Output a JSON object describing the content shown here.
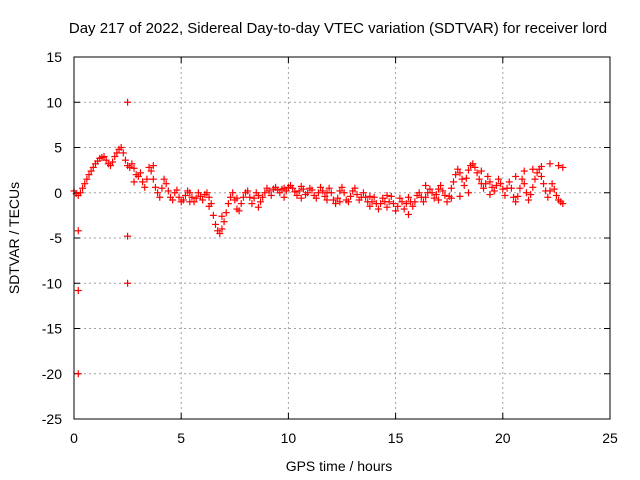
{
  "chart_data": {
    "type": "scatter",
    "title": "Day 217 of 2022, Sidereal Day-to-day VTEC variation (SDTVAR) for receiver lord",
    "xlabel": "GPS time / hours",
    "ylabel": "SDTVAR / TECUs",
    "xlim": [
      0,
      25
    ],
    "ylim": [
      -25,
      15
    ],
    "xticks": [
      0,
      5,
      10,
      15,
      20,
      25
    ],
    "yticks": [
      15,
      10,
      5,
      0,
      -5,
      -10,
      -15,
      -20,
      -25
    ],
    "grid": true,
    "marker": "+",
    "series_color": "#ff0000",
    "series": [
      {
        "name": "SDTVAR",
        "points": [
          [
            0.0,
            0.2
          ],
          [
            0.1,
            -0.1
          ],
          [
            0.2,
            -0.3
          ],
          [
            0.3,
            0.0
          ],
          [
            0.4,
            0.5
          ],
          [
            0.5,
            1.0
          ],
          [
            0.6,
            1.5
          ],
          [
            0.7,
            2.0
          ],
          [
            0.8,
            2.4
          ],
          [
            0.9,
            2.8
          ],
          [
            1.0,
            3.2
          ],
          [
            1.1,
            3.5
          ],
          [
            1.2,
            3.8
          ],
          [
            1.3,
            3.9
          ],
          [
            1.4,
            4.0
          ],
          [
            1.5,
            3.6
          ],
          [
            1.6,
            3.2
          ],
          [
            1.7,
            3.0
          ],
          [
            1.8,
            3.4
          ],
          [
            1.9,
            4.0
          ],
          [
            2.0,
            4.4
          ],
          [
            2.1,
            4.8
          ],
          [
            2.2,
            5.0
          ],
          [
            2.3,
            4.4
          ],
          [
            2.4,
            3.6
          ],
          [
            2.5,
            3.0
          ],
          [
            2.6,
            2.8
          ],
          [
            2.7,
            3.2
          ],
          [
            2.8,
            2.7
          ],
          [
            2.9,
            2.0
          ],
          [
            3.0,
            1.8
          ],
          [
            3.1,
            2.2
          ],
          [
            3.2,
            1.2
          ],
          [
            3.3,
            0.6
          ],
          [
            3.4,
            1.5
          ],
          [
            3.5,
            2.8
          ],
          [
            3.6,
            2.4
          ],
          [
            3.7,
            1.5
          ],
          [
            3.8,
            0.6
          ],
          [
            3.9,
            0.0
          ],
          [
            4.0,
            -0.5
          ],
          [
            4.1,
            0.5
          ],
          [
            4.2,
            1.5
          ],
          [
            4.3,
            1.0
          ],
          [
            4.4,
            0.2
          ],
          [
            4.5,
            -0.5
          ],
          [
            4.6,
            -0.8
          ],
          [
            4.7,
            0.0
          ],
          [
            4.8,
            0.3
          ],
          [
            4.9,
            -0.5
          ],
          [
            5.0,
            -1.0
          ],
          [
            5.1,
            -0.8
          ],
          [
            5.2,
            -0.3
          ],
          [
            5.3,
            0.2
          ],
          [
            5.4,
            0.0
          ],
          [
            5.5,
            -0.5
          ],
          [
            5.6,
            -1.0
          ],
          [
            5.7,
            -0.6
          ],
          [
            5.8,
            0.0
          ],
          [
            5.9,
            -0.4
          ],
          [
            6.0,
            -0.8
          ],
          [
            6.1,
            -0.2
          ],
          [
            6.2,
            0.0
          ],
          [
            6.3,
            -0.5
          ],
          [
            6.4,
            -1.2
          ],
          [
            6.5,
            -2.5
          ],
          [
            6.6,
            -3.5
          ],
          [
            6.7,
            -4.2
          ],
          [
            6.8,
            -4.5
          ],
          [
            6.9,
            -4.0
          ],
          [
            7.0,
            -3.2
          ],
          [
            7.1,
            -2.2
          ],
          [
            7.2,
            -1.2
          ],
          [
            7.3,
            -0.5
          ],
          [
            7.4,
            0.0
          ],
          [
            7.5,
            -0.8
          ],
          [
            7.6,
            -1.8
          ],
          [
            7.7,
            -2.0
          ],
          [
            7.8,
            -1.2
          ],
          [
            7.9,
            -0.5
          ],
          [
            8.0,
            0.0
          ],
          [
            8.1,
            0.2
          ],
          [
            8.2,
            -0.5
          ],
          [
            8.3,
            -1.2
          ],
          [
            8.4,
            -0.6
          ],
          [
            8.5,
            0.0
          ],
          [
            8.6,
            -0.3
          ],
          [
            8.7,
            -1.0
          ],
          [
            8.8,
            -0.5
          ],
          [
            8.9,
            0.0
          ],
          [
            9.0,
            0.5
          ],
          [
            9.1,
            0.2
          ],
          [
            9.2,
            -0.3
          ],
          [
            9.3,
            0.4
          ],
          [
            9.4,
            0.6
          ],
          [
            9.5,
            0.3
          ],
          [
            9.6,
            0.0
          ],
          [
            9.7,
            0.4
          ],
          [
            9.8,
            0.5
          ],
          [
            9.9,
            0.2
          ],
          [
            10.0,
            0.6
          ],
          [
            10.1,
            0.8
          ],
          [
            10.2,
            0.5
          ],
          [
            10.3,
            0.1
          ],
          [
            10.4,
            -0.3
          ],
          [
            10.5,
            0.2
          ],
          [
            10.6,
            0.7
          ],
          [
            10.7,
            0.4
          ],
          [
            10.8,
            -0.2
          ],
          [
            10.9,
            0.0
          ],
          [
            11.0,
            0.5
          ],
          [
            11.1,
            0.3
          ],
          [
            11.2,
            -0.3
          ],
          [
            11.3,
            -0.6
          ],
          [
            11.4,
            0.0
          ],
          [
            11.5,
            0.6
          ],
          [
            11.6,
            0.2
          ],
          [
            11.7,
            -0.4
          ],
          [
            11.8,
            0.0
          ],
          [
            11.9,
            0.5
          ],
          [
            12.0,
            0.0
          ],
          [
            12.1,
            -0.8
          ],
          [
            12.2,
            -1.2
          ],
          [
            12.3,
            -0.6
          ],
          [
            12.4,
            0.2
          ],
          [
            12.5,
            0.6
          ],
          [
            12.6,
            0.0
          ],
          [
            12.7,
            -0.8
          ],
          [
            12.8,
            -1.0
          ],
          [
            12.9,
            -0.4
          ],
          [
            13.0,
            0.2
          ],
          [
            13.1,
            0.5
          ],
          [
            13.2,
            -0.2
          ],
          [
            13.3,
            -0.8
          ],
          [
            13.4,
            -0.5
          ],
          [
            13.5,
            0.0
          ],
          [
            13.6,
            -0.5
          ],
          [
            13.7,
            -1.0
          ],
          [
            13.8,
            -1.5
          ],
          [
            13.9,
            -1.0
          ],
          [
            14.0,
            -0.5
          ],
          [
            14.1,
            -1.2
          ],
          [
            14.2,
            -1.8
          ],
          [
            14.3,
            -1.2
          ],
          [
            14.4,
            -0.6
          ],
          [
            14.5,
            -1.0
          ],
          [
            14.6,
            -1.6
          ],
          [
            14.7,
            -1.0
          ],
          [
            14.8,
            -0.4
          ],
          [
            14.9,
            -1.2
          ],
          [
            15.0,
            -2.0
          ],
          [
            15.1,
            -1.5
          ],
          [
            15.2,
            -0.6
          ],
          [
            15.3,
            -1.0
          ],
          [
            15.4,
            -1.8
          ],
          [
            15.5,
            -1.2
          ],
          [
            15.6,
            -0.5
          ],
          [
            15.7,
            -1.0
          ],
          [
            15.8,
            -1.5
          ],
          [
            15.9,
            -1.0
          ],
          [
            16.0,
            -0.3
          ],
          [
            16.1,
            0.0
          ],
          [
            16.2,
            -0.5
          ],
          [
            16.3,
            -1.0
          ],
          [
            16.4,
            -0.5
          ],
          [
            16.5,
            0.0
          ],
          [
            16.6,
            0.4
          ],
          [
            16.7,
            0.0
          ],
          [
            16.8,
            -0.6
          ],
          [
            16.9,
            -0.2
          ],
          [
            17.0,
            0.4
          ],
          [
            17.1,
            0.8
          ],
          [
            17.2,
            0.2
          ],
          [
            17.3,
            -0.3
          ],
          [
            17.4,
            -1.0
          ],
          [
            17.5,
            -0.4
          ],
          [
            17.6,
            0.5
          ],
          [
            17.7,
            1.2
          ],
          [
            17.8,
            2.0
          ],
          [
            17.9,
            2.6
          ],
          [
            18.0,
            2.2
          ],
          [
            18.1,
            1.5
          ],
          [
            18.2,
            0.8
          ],
          [
            18.3,
            1.6
          ],
          [
            18.4,
            2.5
          ],
          [
            18.5,
            3.0
          ],
          [
            18.6,
            3.2
          ],
          [
            18.7,
            2.8
          ],
          [
            18.8,
            2.2
          ],
          [
            18.9,
            1.5
          ],
          [
            19.0,
            1.0
          ],
          [
            19.1,
            0.5
          ],
          [
            19.2,
            1.0
          ],
          [
            19.3,
            1.8
          ],
          [
            19.4,
            1.2
          ],
          [
            19.5,
            0.6
          ],
          [
            19.6,
            0.2
          ],
          [
            19.7,
            0.8
          ],
          [
            19.8,
            1.5
          ],
          [
            19.9,
            1.0
          ],
          [
            20.0,
            0.4
          ],
          [
            20.1,
            -0.3
          ],
          [
            20.2,
            0.5
          ],
          [
            20.3,
            1.2
          ],
          [
            20.4,
            0.5
          ],
          [
            20.5,
            -0.5
          ],
          [
            20.6,
            -1.0
          ],
          [
            20.7,
            -0.4
          ],
          [
            20.8,
            0.5
          ],
          [
            20.9,
            1.5
          ],
          [
            21.0,
            1.0
          ],
          [
            21.1,
            0.0
          ],
          [
            21.2,
            -0.8
          ],
          [
            21.3,
            -0.2
          ],
          [
            21.4,
            0.6
          ],
          [
            21.5,
            1.5
          ],
          [
            21.6,
            2.2
          ],
          [
            21.7,
            2.6
          ],
          [
            21.8,
            1.8
          ],
          [
            21.9,
            1.0
          ],
          [
            22.0,
            0.2
          ],
          [
            22.1,
            -0.5
          ],
          [
            22.2,
            0.2
          ],
          [
            22.3,
            1.0
          ],
          [
            22.4,
            0.4
          ],
          [
            22.5,
            -0.3
          ],
          [
            22.6,
            -0.8
          ],
          [
            22.7,
            -1.0
          ],
          [
            22.8,
            -1.2
          ],
          [
            20.6,
            1.8
          ],
          [
            21.0,
            2.4
          ],
          [
            21.4,
            2.6
          ],
          [
            21.8,
            2.9
          ],
          [
            22.2,
            3.2
          ],
          [
            22.6,
            3.0
          ],
          [
            22.8,
            2.8
          ],
          [
            16.4,
            0.8
          ],
          [
            17.0,
            -0.8
          ],
          [
            17.6,
            -0.6
          ],
          [
            18.0,
            -0.4
          ],
          [
            18.4,
            0.0
          ],
          [
            19.0,
            2.4
          ],
          [
            19.4,
            -0.2
          ],
          [
            8.6,
            -1.6
          ],
          [
            7.6,
            -0.6
          ],
          [
            6.9,
            -2.6
          ],
          [
            6.3,
            -1.5
          ],
          [
            3.7,
            3.0
          ],
          [
            2.8,
            1.2
          ],
          [
            12.4,
            -1.0
          ],
          [
            14.6,
            -0.3
          ],
          [
            15.6,
            -2.4
          ],
          [
            13.8,
            -0.4
          ],
          [
            11.8,
            -0.8
          ],
          [
            10.6,
            -0.6
          ],
          [
            9.8,
            -0.5
          ],
          [
            5.4,
            -1.0
          ],
          [
            0.2,
            -4.2
          ],
          [
            0.2,
            -10.8
          ],
          [
            0.2,
            -20.0
          ],
          [
            2.5,
            10.0
          ],
          [
            2.5,
            -4.8
          ],
          [
            2.5,
            -10.0
          ]
        ]
      }
    ]
  }
}
